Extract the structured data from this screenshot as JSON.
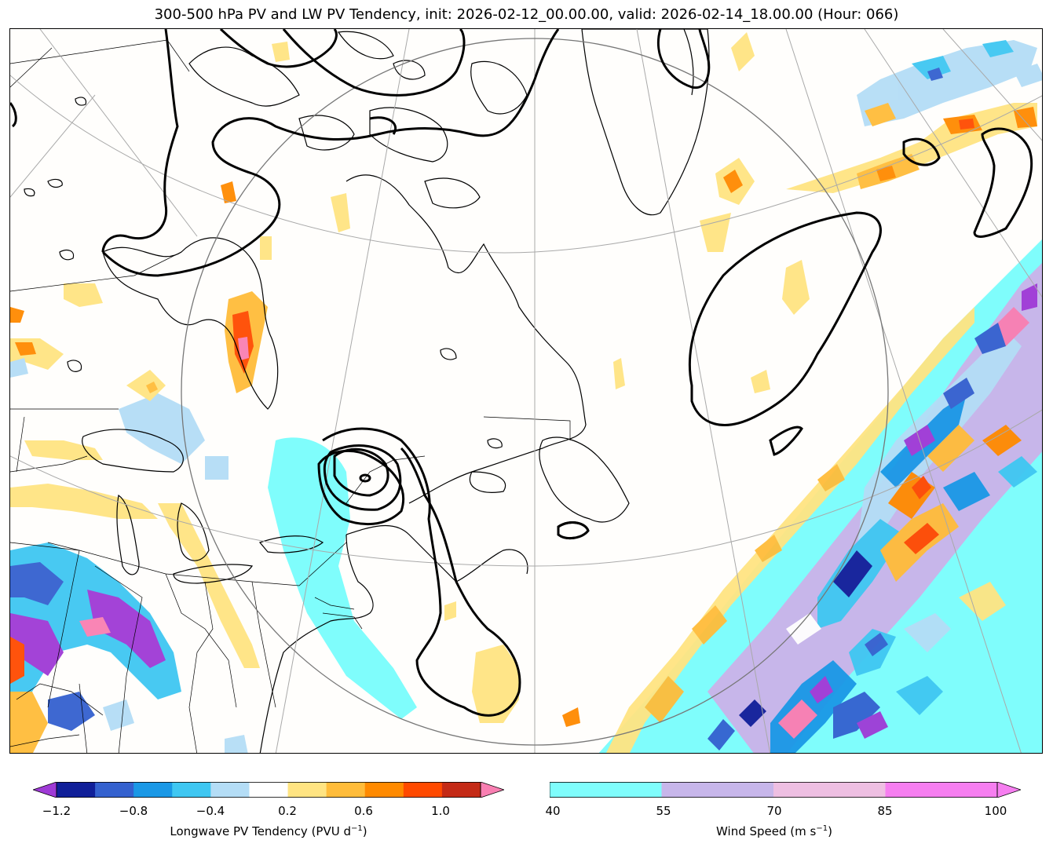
{
  "title": "300-500 hPa PV and LW PV Tendency, init: 2026-02-12_00.00.00, valid: 2026-02-14_18.00.00 (Hour: 066)",
  "pv_tendency_colorbar": {
    "label_main": "Longwave PV Tendency (PVU d",
    "label_sup": "−1",
    "label_close": ")",
    "ticks": [
      "−1.2",
      "−0.8",
      "−0.4",
      "0.2",
      "0.6",
      "1.0"
    ],
    "colors": [
      "#9f3ad6",
      "#101f99",
      "#3461cf",
      "#1a98e6",
      "#3fc7f2",
      "#b4ddf6",
      "#ffffff",
      "#ffe482",
      "#ffbc3a",
      "#ff8a00",
      "#ff4a00",
      "#c42a16",
      "#f97fb2"
    ],
    "extend": "both"
  },
  "wind_colorbar": {
    "label_main": "Wind Speed (m s",
    "label_sup": "−1",
    "label_close": ")",
    "ticks": [
      "40",
      "55",
      "70",
      "85",
      "100"
    ],
    "colors": [
      "#7ffdfc",
      "#c7b6ea",
      "#eebfe2",
      "#f67ef0"
    ],
    "extend": "max"
  }
}
